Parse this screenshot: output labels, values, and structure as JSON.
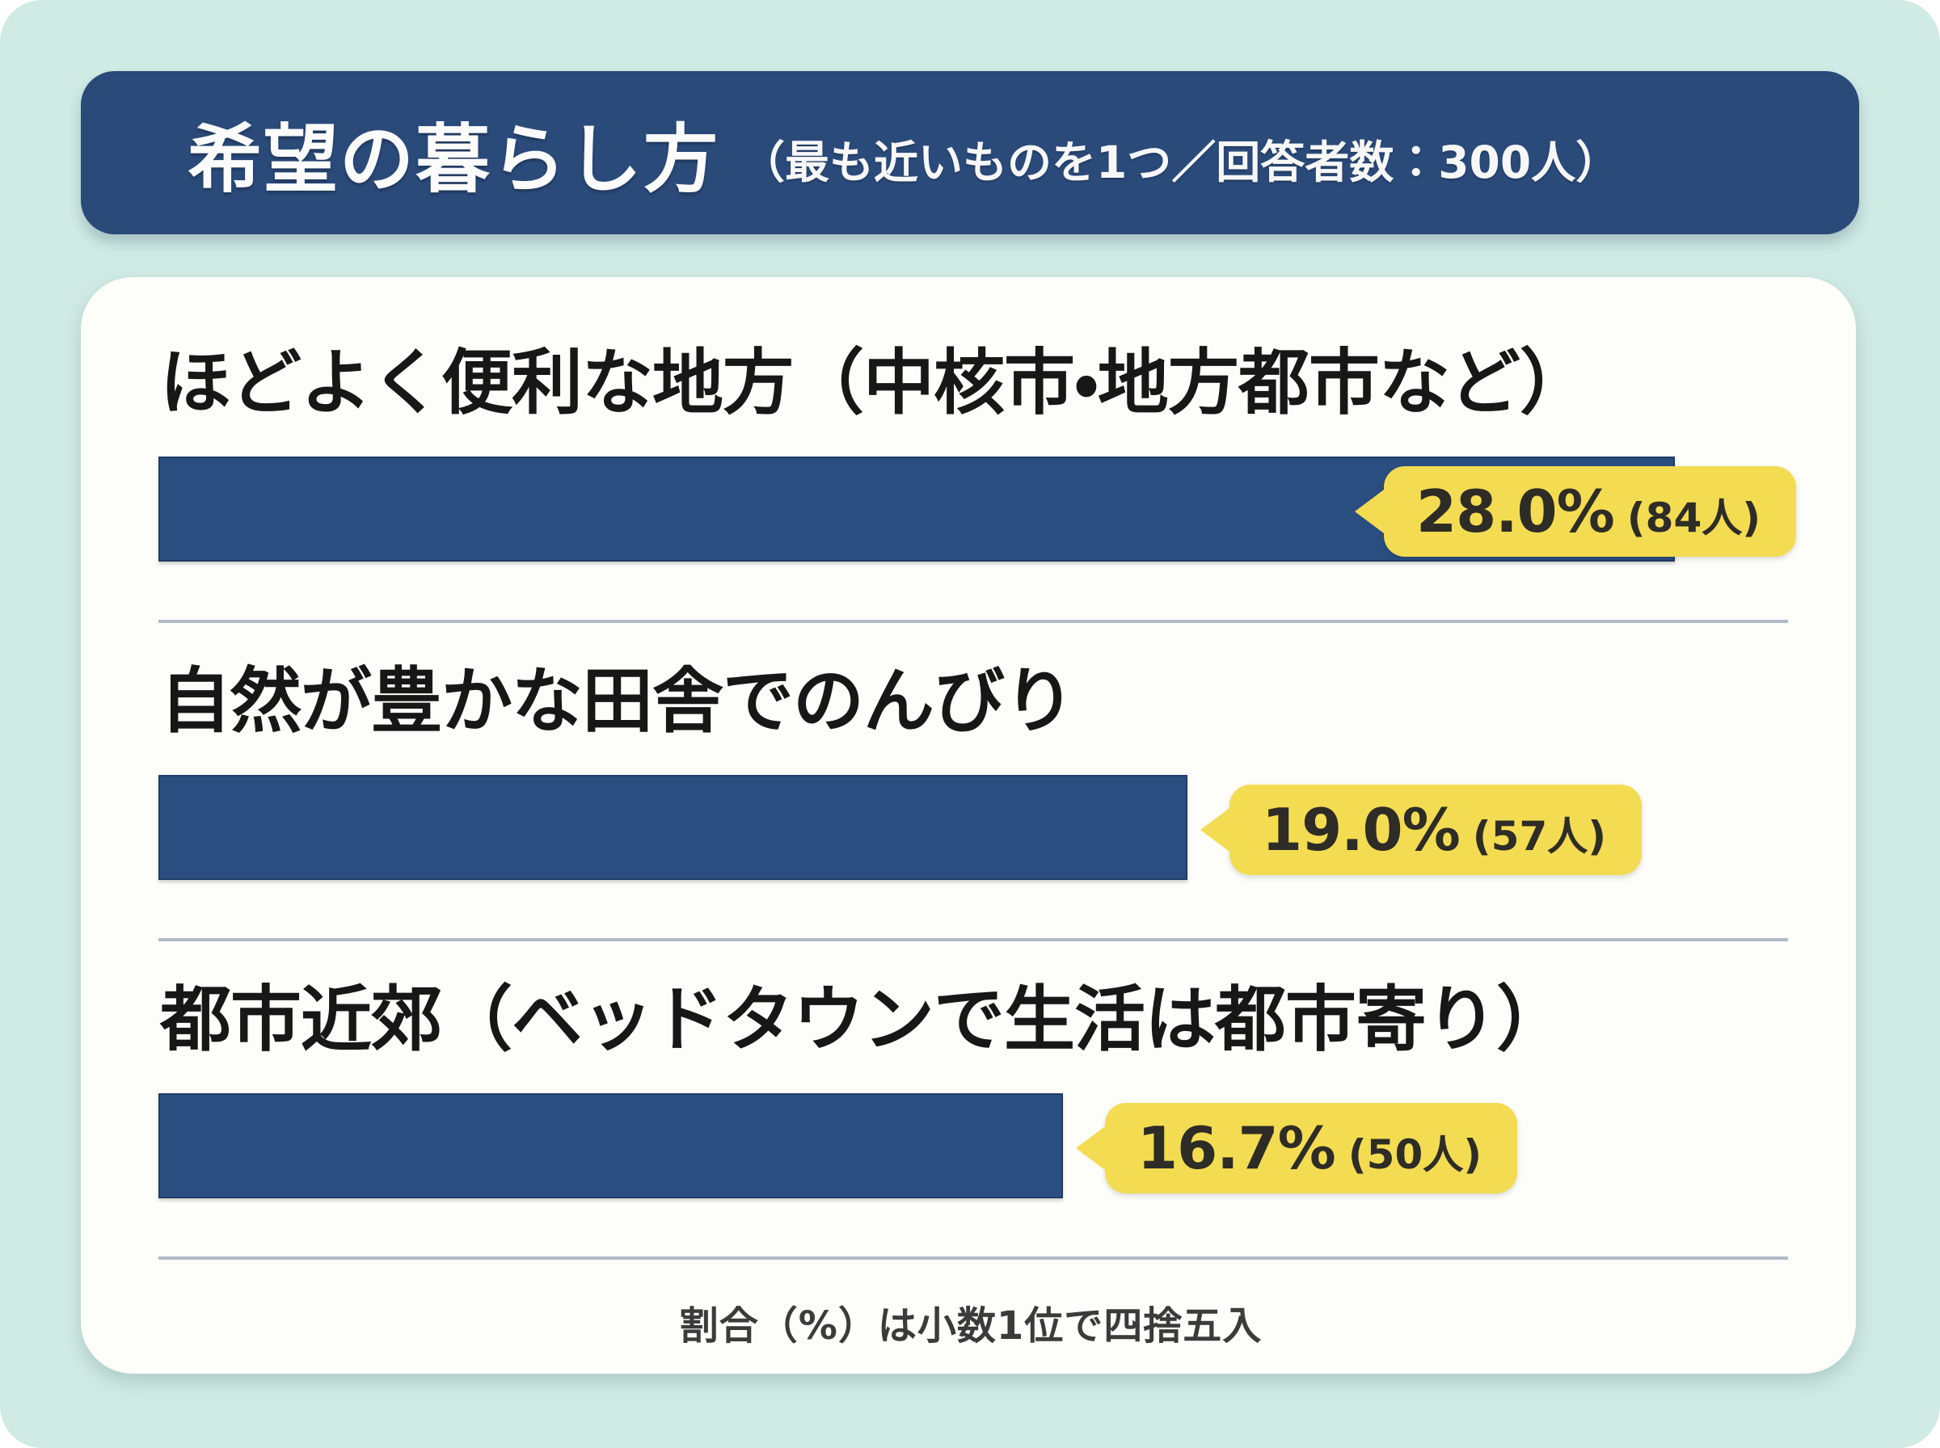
{
  "page": {
    "title": "希望の暮らし方",
    "title_note": "（最も近いものを1つ／回答者数：300人）",
    "footnote": "割合（%）は小数1位で四捨五入"
  },
  "chart_data": {
    "type": "bar",
    "orientation": "horizontal",
    "title": "希望の暮らし方（最も近いものを1つ／回答者数：300人）",
    "respondents_label": "回答者数：300人",
    "axis_max": 30,
    "unit": "%",
    "grid": false,
    "legend": false,
    "categories": [
      "ほどよく便利な地方（中核市・地方都市など）",
      "自然が豊かな田舎でのんびり",
      "都市近郊（ベッドタウンで生活は都市寄り）"
    ],
    "series": [
      {
        "label": "ほどよく便利な地方（中核市・地方都市など）",
        "value": 28.0,
        "value_label": "28.0%",
        "count": 84,
        "count_label": "(84人)"
      },
      {
        "label": "自然が豊かな田舎でのんびり",
        "value": 19.0,
        "value_label": "19.0%",
        "count": 57,
        "count_label": "(57人)"
      },
      {
        "label": "都市近郊（ベッドタウンで生活は都市寄り）",
        "value": 16.7,
        "value_label": "16.7%",
        "count": 50,
        "count_label": "(50人)"
      }
    ],
    "colors": {
      "bar": "#2b4e80",
      "title_bar": "#2a4a7a",
      "bubble": "#f3dc51",
      "background": "#d0eae4",
      "card": "#fdfdfa",
      "divider": "#b2bac6"
    },
    "footnote": "割合（%）は小数1位で四捨五入"
  }
}
